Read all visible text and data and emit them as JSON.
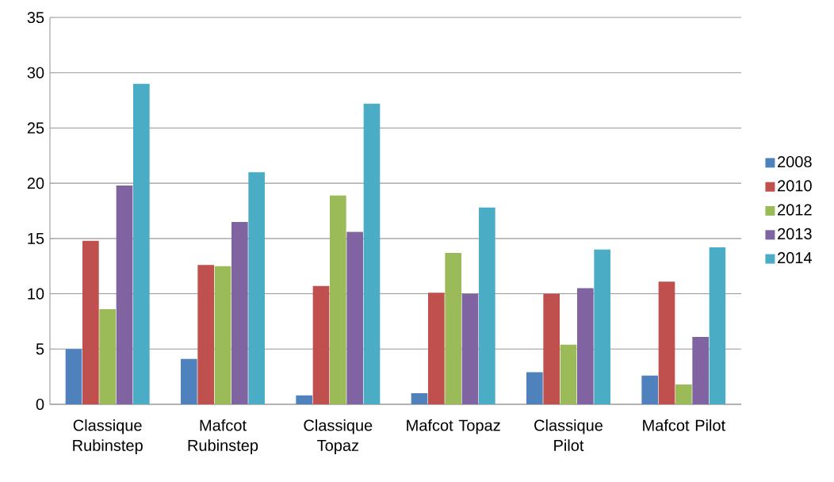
{
  "chart_data": {
    "type": "bar",
    "categories": [
      "Classique Rubinstep",
      "Mafcot Rubinstep",
      "Classique Topaz",
      "Mafcot Topaz",
      "Classique Pilot",
      "Mafcot Pilot"
    ],
    "series": [
      {
        "name": "2008",
        "color": "#4f81bd",
        "values": [
          5.0,
          4.1,
          0.8,
          1.0,
          2.9,
          2.6
        ]
      },
      {
        "name": "2010",
        "color": "#c0504d",
        "values": [
          14.8,
          12.6,
          10.7,
          10.1,
          10.0,
          11.1
        ]
      },
      {
        "name": "2012",
        "color": "#9bbb59",
        "values": [
          8.6,
          12.5,
          18.9,
          13.7,
          5.4,
          1.8
        ]
      },
      {
        "name": "2013",
        "color": "#8064a2",
        "values": [
          19.8,
          16.5,
          15.6,
          10.0,
          10.5,
          6.1
        ]
      },
      {
        "name": "2014",
        "color": "#4bacc6",
        "values": [
          29.0,
          21.0,
          27.2,
          17.8,
          14.0,
          14.2
        ]
      }
    ],
    "ylim": [
      0,
      35
    ],
    "yticks": [
      0,
      5,
      10,
      15,
      20,
      25,
      30,
      35
    ],
    "grid": "y",
    "legend": "right"
  }
}
